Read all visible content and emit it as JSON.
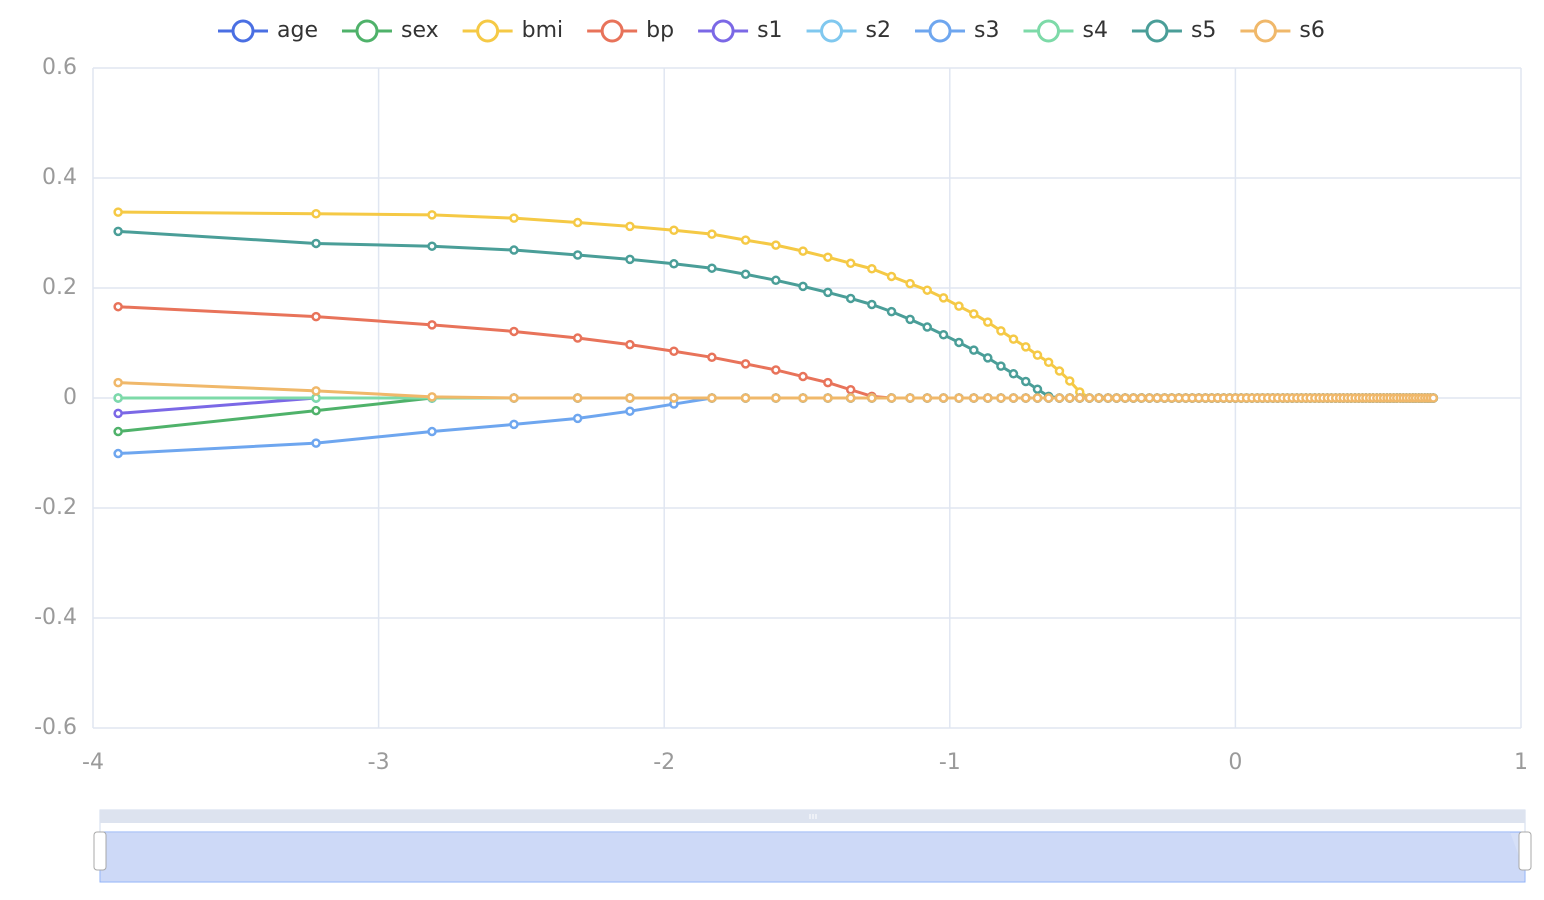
{
  "chart_data": {
    "type": "line",
    "x": [
      -3.912,
      -3.219,
      -2.813,
      -2.526,
      -2.303,
      -2.12,
      -1.966,
      -1.833,
      -1.715,
      -1.609,
      -1.514,
      -1.427,
      -1.347,
      -1.273,
      -1.204,
      -1.139,
      -1.079,
      -1.022,
      -0.968,
      -0.916,
      -0.867,
      -0.821,
      -0.777,
      -0.734,
      -0.693,
      -0.654,
      -0.616,
      -0.58,
      -0.545,
      -0.511,
      -0.478,
      -0.446,
      -0.416,
      -0.386,
      -0.357,
      -0.329,
      -0.301,
      -0.274,
      -0.248,
      -0.223,
      -0.198,
      -0.174,
      -0.151,
      -0.128,
      -0.105,
      -0.083,
      -0.062,
      -0.041,
      -0.02,
      0,
      0.02,
      0.039,
      0.058,
      0.077,
      0.095,
      0.113,
      0.131,
      0.148,
      0.166,
      0.182,
      0.199,
      0.215,
      0.231,
      0.247,
      0.262,
      0.278,
      0.293,
      0.307,
      0.322,
      0.336,
      0.351,
      0.365,
      0.378,
      0.392,
      0.405,
      0.419,
      0.432,
      0.445,
      0.457,
      0.47,
      0.482,
      0.495,
      0.507,
      0.519,
      0.531,
      0.542,
      0.554,
      0.565,
      0.577,
      0.588,
      0.599,
      0.61,
      0.621,
      0.631,
      0.642,
      0.652,
      0.663,
      0.673,
      0.683,
      0.693
    ],
    "series": [
      {
        "name": "age",
        "color": "#4a6fe3",
        "values": [
          0,
          0,
          0,
          0,
          0,
          0,
          0,
          0,
          0,
          0,
          0,
          0,
          0,
          0,
          0,
          0,
          0,
          0,
          0,
          0,
          0,
          0,
          0,
          0,
          0,
          0,
          0,
          0,
          0,
          0,
          0,
          0,
          0,
          0,
          0,
          0,
          0,
          0,
          0,
          0,
          0,
          0,
          0,
          0,
          0,
          0,
          0,
          0,
          0,
          0,
          0,
          0,
          0,
          0,
          0,
          0,
          0,
          0,
          0,
          0,
          0,
          0,
          0,
          0,
          0,
          0,
          0,
          0,
          0,
          0,
          0,
          0,
          0,
          0,
          0,
          0,
          0,
          0,
          0,
          0,
          0,
          0,
          0,
          0,
          0,
          0,
          0,
          0,
          0,
          0,
          0,
          0,
          0,
          0,
          0,
          0,
          0,
          0,
          0,
          0
        ]
      },
      {
        "name": "sex",
        "color": "#4fb26a",
        "values": [
          -0.061,
          -0.023,
          0,
          0,
          0,
          0,
          0,
          0,
          0,
          0,
          0,
          0,
          0,
          0,
          0,
          0,
          0,
          0,
          0,
          0,
          0,
          0,
          0,
          0,
          0,
          0,
          0,
          0,
          0,
          0,
          0,
          0,
          0,
          0,
          0,
          0,
          0,
          0,
          0,
          0,
          0,
          0,
          0,
          0,
          0,
          0,
          0,
          0,
          0,
          0,
          0,
          0,
          0,
          0,
          0,
          0,
          0,
          0,
          0,
          0,
          0,
          0,
          0,
          0,
          0,
          0,
          0,
          0,
          0,
          0,
          0,
          0,
          0,
          0,
          0,
          0,
          0,
          0,
          0,
          0,
          0,
          0,
          0,
          0,
          0,
          0,
          0,
          0,
          0,
          0,
          0,
          0,
          0,
          0,
          0,
          0,
          0,
          0,
          0,
          0
        ]
      },
      {
        "name": "bmi",
        "color": "#f5c945",
        "values": [
          0.338,
          0.335,
          0.333,
          0.327,
          0.319,
          0.312,
          0.305,
          0.298,
          0.287,
          0.278,
          0.267,
          0.256,
          0.245,
          0.235,
          0.221,
          0.208,
          0.196,
          0.182,
          0.167,
          0.153,
          0.138,
          0.122,
          0.107,
          0.093,
          0.078,
          0.065,
          0.049,
          0.031,
          0.011,
          0,
          0,
          0,
          0,
          0,
          0,
          0,
          0,
          0,
          0,
          0,
          0,
          0,
          0,
          0,
          0,
          0,
          0,
          0,
          0,
          0,
          0,
          0,
          0,
          0,
          0,
          0,
          0,
          0,
          0,
          0,
          0,
          0,
          0,
          0,
          0,
          0,
          0,
          0,
          0,
          0,
          0,
          0,
          0,
          0,
          0,
          0,
          0,
          0,
          0,
          0,
          0,
          0,
          0,
          0,
          0,
          0,
          0,
          0,
          0,
          0,
          0,
          0,
          0,
          0,
          0,
          0,
          0,
          0,
          0,
          0
        ]
      },
      {
        "name": "bp",
        "color": "#e8735a",
        "values": [
          0.166,
          0.148,
          0.133,
          0.121,
          0.109,
          0.097,
          0.085,
          0.074,
          0.062,
          0.051,
          0.039,
          0.028,
          0.015,
          0.003,
          0,
          0,
          0,
          0,
          0,
          0,
          0,
          0,
          0,
          0,
          0,
          0,
          0,
          0,
          0,
          0,
          0,
          0,
          0,
          0,
          0,
          0,
          0,
          0,
          0,
          0,
          0,
          0,
          0,
          0,
          0,
          0,
          0,
          0,
          0,
          0,
          0,
          0,
          0,
          0,
          0,
          0,
          0,
          0,
          0,
          0,
          0,
          0,
          0,
          0,
          0,
          0,
          0,
          0,
          0,
          0,
          0,
          0,
          0,
          0,
          0,
          0,
          0,
          0,
          0,
          0,
          0,
          0,
          0,
          0,
          0,
          0,
          0,
          0,
          0,
          0,
          0,
          0,
          0,
          0,
          0,
          0,
          0,
          0,
          0,
          0
        ]
      },
      {
        "name": "s1",
        "color": "#7b68e6",
        "values": [
          -0.028,
          0,
          0,
          0,
          0,
          0,
          0,
          0,
          0,
          0,
          0,
          0,
          0,
          0,
          0,
          0,
          0,
          0,
          0,
          0,
          0,
          0,
          0,
          0,
          0,
          0,
          0,
          0,
          0,
          0,
          0,
          0,
          0,
          0,
          0,
          0,
          0,
          0,
          0,
          0,
          0,
          0,
          0,
          0,
          0,
          0,
          0,
          0,
          0,
          0,
          0,
          0,
          0,
          0,
          0,
          0,
          0,
          0,
          0,
          0,
          0,
          0,
          0,
          0,
          0,
          0,
          0,
          0,
          0,
          0,
          0,
          0,
          0,
          0,
          0,
          0,
          0,
          0,
          0,
          0,
          0,
          0,
          0,
          0,
          0,
          0,
          0,
          0,
          0,
          0,
          0,
          0,
          0,
          0,
          0,
          0,
          0,
          0,
          0,
          0
        ]
      },
      {
        "name": "s2",
        "color": "#80c8ef",
        "values": [
          0,
          0,
          0,
          0,
          0,
          0,
          0,
          0,
          0,
          0,
          0,
          0,
          0,
          0,
          0,
          0,
          0,
          0,
          0,
          0,
          0,
          0,
          0,
          0,
          0,
          0,
          0,
          0,
          0,
          0,
          0,
          0,
          0,
          0,
          0,
          0,
          0,
          0,
          0,
          0,
          0,
          0,
          0,
          0,
          0,
          0,
          0,
          0,
          0,
          0,
          0,
          0,
          0,
          0,
          0,
          0,
          0,
          0,
          0,
          0,
          0,
          0,
          0,
          0,
          0,
          0,
          0,
          0,
          0,
          0,
          0,
          0,
          0,
          0,
          0,
          0,
          0,
          0,
          0,
          0,
          0,
          0,
          0,
          0,
          0,
          0,
          0,
          0,
          0,
          0,
          0,
          0,
          0,
          0,
          0,
          0,
          0,
          0,
          0,
          0
        ]
      },
      {
        "name": "s3",
        "color": "#6ea6ef",
        "values": [
          -0.101,
          -0.082,
          -0.061,
          -0.048,
          -0.037,
          -0.024,
          -0.011,
          0,
          0,
          0,
          0,
          0,
          0,
          0,
          0,
          0,
          0,
          0,
          0,
          0,
          0,
          0,
          0,
          0,
          0,
          0,
          0,
          0,
          0,
          0,
          0,
          0,
          0,
          0,
          0,
          0,
          0,
          0,
          0,
          0,
          0,
          0,
          0,
          0,
          0,
          0,
          0,
          0,
          0,
          0,
          0,
          0,
          0,
          0,
          0,
          0,
          0,
          0,
          0,
          0,
          0,
          0,
          0,
          0,
          0,
          0,
          0,
          0,
          0,
          0,
          0,
          0,
          0,
          0,
          0,
          0,
          0,
          0,
          0,
          0,
          0,
          0,
          0,
          0,
          0,
          0,
          0,
          0,
          0,
          0,
          0,
          0,
          0,
          0,
          0,
          0,
          0,
          0,
          0,
          0
        ]
      },
      {
        "name": "s4",
        "color": "#7ddaa8",
        "values": [
          0,
          0,
          0,
          0,
          0,
          0,
          0,
          0,
          0,
          0,
          0,
          0,
          0,
          0,
          0,
          0,
          0,
          0,
          0,
          0,
          0,
          0,
          0,
          0,
          0,
          0,
          0,
          0,
          0,
          0,
          0,
          0,
          0,
          0,
          0,
          0,
          0,
          0,
          0,
          0,
          0,
          0,
          0,
          0,
          0,
          0,
          0,
          0,
          0,
          0,
          0,
          0,
          0,
          0,
          0,
          0,
          0,
          0,
          0,
          0,
          0,
          0,
          0,
          0,
          0,
          0,
          0,
          0,
          0,
          0,
          0,
          0,
          0,
          0,
          0,
          0,
          0,
          0,
          0,
          0,
          0,
          0,
          0,
          0,
          0,
          0,
          0,
          0,
          0,
          0,
          0,
          0,
          0,
          0,
          0,
          0,
          0,
          0,
          0,
          0
        ]
      },
      {
        "name": "s5",
        "color": "#4a9e98",
        "values": [
          0.303,
          0.281,
          0.276,
          0.269,
          0.26,
          0.252,
          0.244,
          0.236,
          0.225,
          0.214,
          0.203,
          0.192,
          0.181,
          0.17,
          0.157,
          0.143,
          0.129,
          0.115,
          0.101,
          0.087,
          0.073,
          0.058,
          0.044,
          0.03,
          0.016,
          0.003,
          0,
          0,
          0,
          0,
          0,
          0,
          0,
          0,
          0,
          0,
          0,
          0,
          0,
          0,
          0,
          0,
          0,
          0,
          0,
          0,
          0,
          0,
          0,
          0,
          0,
          0,
          0,
          0,
          0,
          0,
          0,
          0,
          0,
          0,
          0,
          0,
          0,
          0,
          0,
          0,
          0,
          0,
          0,
          0,
          0,
          0,
          0,
          0,
          0,
          0,
          0,
          0,
          0,
          0,
          0,
          0,
          0,
          0,
          0,
          0,
          0,
          0,
          0,
          0,
          0,
          0,
          0,
          0,
          0,
          0,
          0,
          0,
          0,
          0
        ]
      },
      {
        "name": "s6",
        "color": "#f0b86a",
        "values": [
          0.028,
          0.013,
          0.002,
          0,
          0,
          0,
          0,
          0,
          0,
          0,
          0,
          0,
          0,
          0,
          0,
          0,
          0,
          0,
          0,
          0,
          0,
          0,
          0,
          0,
          0,
          0,
          0,
          0,
          0,
          0,
          0,
          0,
          0,
          0,
          0,
          0,
          0,
          0,
          0,
          0,
          0,
          0,
          0,
          0,
          0,
          0,
          0,
          0,
          0,
          0,
          0,
          0,
          0,
          0,
          0,
          0,
          0,
          0,
          0,
          0,
          0,
          0,
          0,
          0,
          0,
          0,
          0,
          0,
          0,
          0,
          0,
          0,
          0,
          0,
          0,
          0,
          0,
          0,
          0,
          0,
          0,
          0,
          0,
          0,
          0,
          0,
          0,
          0,
          0,
          0,
          0,
          0,
          0,
          0,
          0,
          0,
          0,
          0,
          0,
          0
        ]
      }
    ],
    "xlim": [
      -4,
      1
    ],
    "xticks": [
      -4,
      -3,
      -2,
      -1,
      0,
      1
    ],
    "ylim": [
      -0.6,
      0.6
    ],
    "yticks": [
      -0.6,
      -0.4,
      -0.2,
      0,
      0.2,
      0.4,
      0.6
    ],
    "grid": true
  }
}
